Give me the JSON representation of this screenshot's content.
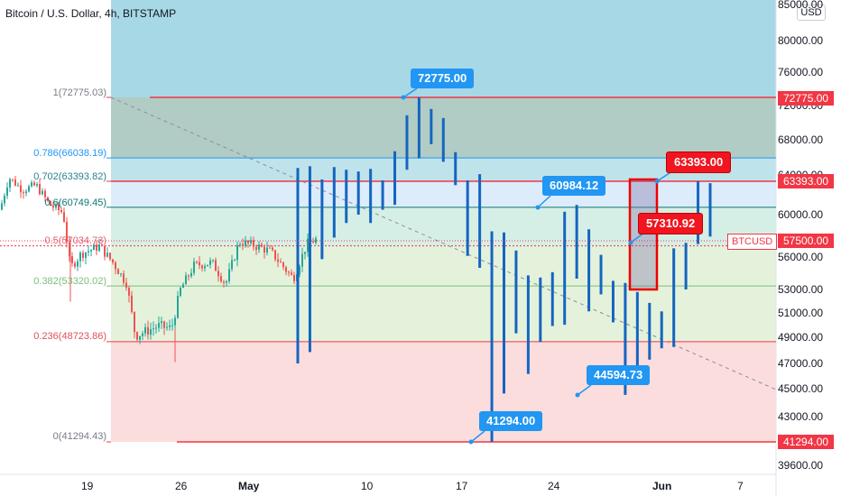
{
  "header": {
    "title": "Bitcoin / U.S. Dollar, 4h, BITSTAMP",
    "currency": "USD"
  },
  "colors": {
    "red": "#f23645",
    "blue": "#2196f3",
    "candle_up": "#26a69a",
    "candle_down": "#ef5350",
    "bar": "#1565c0"
  },
  "chart_data": {
    "type": "candlestick",
    "title": "Bitcoin / U.S. Dollar, 4h, BITSTAMP",
    "y_axis": {
      "ticks": [
        "85000.00",
        "80000.00",
        "76000.00",
        "72000.00",
        "68000.00",
        "64000.00",
        "60000.00",
        "56000.00",
        "53000.00",
        "51000.00",
        "49000.00",
        "47000.00",
        "45000.00",
        "43000.00",
        "39600.00"
      ],
      "ylim": [
        38900,
        85000
      ]
    },
    "x_axis": {
      "ticks": [
        "19",
        "26",
        "May",
        "10",
        "17",
        "24",
        "Jun",
        "7"
      ]
    },
    "fib_levels": [
      {
        "label": "1(72775.03)",
        "price": 72775.03
      },
      {
        "label": "0.786(66038.19)",
        "price": 66038.19
      },
      {
        "label": "0.702(63393.82)",
        "price": 63393.82
      },
      {
        "label": "0.6(60749.45)",
        "price": 60749.45
      },
      {
        "label": "0.5(57034.73)",
        "price": 57034.73
      },
      {
        "label": "0.382(53320.02)",
        "price": 53320.02
      },
      {
        "label": "0.236(48723.86)",
        "price": 48723.86
      },
      {
        "label": "0(41294.43)",
        "price": 41294.43
      }
    ],
    "callouts": [
      {
        "text": "72775.00",
        "value": 72775.0,
        "color": "blue"
      },
      {
        "text": "60984.12",
        "value": 60984.12,
        "color": "blue"
      },
      {
        "text": "63393.00",
        "value": 63393.0,
        "color": "red"
      },
      {
        "text": "57310.92",
        "value": 57310.92,
        "color": "red"
      },
      {
        "text": "44594.73",
        "value": 44594.73,
        "color": "blue"
      },
      {
        "text": "41294.00",
        "value": 41294.0,
        "color": "blue"
      }
    ],
    "price_tags": [
      "72775.00",
      "63393.00",
      "57500.00",
      "41294.00"
    ],
    "symbol": "BTCUSD",
    "last_price": 57500.0,
    "projected_bars": [
      {
        "high": 64900,
        "low": 47000
      },
      {
        "high": 65100,
        "low": 47900
      },
      {
        "high": 63600,
        "low": 55800
      },
      {
        "high": 65000,
        "low": 57800
      },
      {
        "high": 64700,
        "low": 59200
      },
      {
        "high": 64500,
        "low": 60000
      },
      {
        "high": 64800,
        "low": 59200
      },
      {
        "high": 63500,
        "low": 60500
      },
      {
        "high": 66800,
        "low": 61000
      },
      {
        "high": 70800,
        "low": 64700
      },
      {
        "high": 72775,
        "low": 66000
      },
      {
        "high": 71500,
        "low": 67600
      },
      {
        "high": 70500,
        "low": 65600
      },
      {
        "high": 66700,
        "low": 63000
      },
      {
        "high": 63500,
        "low": 56100
      },
      {
        "high": 64200,
        "low": 55000
      },
      {
        "high": 58400,
        "low": 41294
      },
      {
        "high": 58300,
        "low": 44700
      },
      {
        "high": 56600,
        "low": 49400
      },
      {
        "high": 54300,
        "low": 46200
      },
      {
        "high": 54100,
        "low": 48700
      },
      {
        "high": 54600,
        "low": 50000
      },
      {
        "high": 60300,
        "low": 50100
      },
      {
        "high": 60984,
        "low": 54000
      },
      {
        "high": 58600,
        "low": 51200
      },
      {
        "high": 56200,
        "low": 52600
      },
      {
        "high": 53800,
        "low": 50300
      },
      {
        "high": 53600,
        "low": 44595
      },
      {
        "high": 52800,
        "low": 46700
      },
      {
        "high": 51900,
        "low": 47300
      },
      {
        "high": 51200,
        "low": 48200
      },
      {
        "high": 56800,
        "low": 48300
      },
      {
        "high": 57311,
        "low": 53000
      },
      {
        "high": 63393,
        "low": 57200
      },
      {
        "high": 63200,
        "low": 57900
      }
    ]
  }
}
